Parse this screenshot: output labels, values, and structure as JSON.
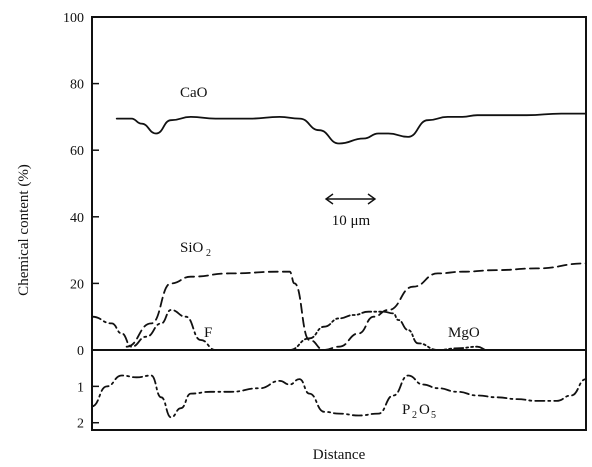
{
  "chart_data": {
    "type": "line",
    "title": "",
    "xlabel": "Distance",
    "ylabel": "Chemical content (%)",
    "grid": false,
    "legend": "none",
    "scale_bar_label": "10 μm",
    "x_range": [
      0,
      100
    ],
    "panels": [
      {
        "name": "upper",
        "ylim": [
          0,
          100
        ],
        "yticks": [
          "0",
          "20",
          "40",
          "60",
          "80",
          "100"
        ],
        "series": [
          {
            "name": "CaO",
            "style": "solid",
            "x": [
              5,
              8,
              10,
              13,
              16,
              20,
              25,
              32,
              38,
              42,
              46,
              50,
              55,
              58,
              60,
              64,
              68,
              72,
              75,
              78,
              82,
              88,
              95,
              100
            ],
            "y": [
              69.5,
              69.5,
              68,
              65,
              69,
              70,
              69.5,
              69.5,
              70,
              69.5,
              66,
              62,
              63.5,
              65,
              65,
              64,
              69,
              70,
              70,
              70.5,
              70.5,
              70.5,
              71,
              71
            ]
          },
          {
            "name": "SiO2",
            "style": "dashed",
            "x": [
              7,
              12,
              16,
              20,
              28,
              38,
              40,
              41,
              44,
              47,
              50,
              54,
              57,
              60,
              65,
              70,
              75,
              82,
              90,
              100
            ],
            "y": [
              1,
              8,
              20,
              22,
              23,
              23.5,
              23.5,
              20,
              3,
              0,
              1,
              5,
              10,
              12,
              19,
              23,
              23.5,
              24,
              24.5,
              26
            ]
          },
          {
            "name": "F",
            "style": "dash-dot",
            "x": [
              0,
              4,
              6,
              8,
              11,
              14,
              16,
              19,
              22,
              25
            ],
            "y": [
              10,
              8,
              5,
              1,
              4,
              8,
              12,
              10,
              3,
              0
            ]
          },
          {
            "name": "MgO",
            "style": "dash-dot-dot",
            "x": [
              35,
              40,
              44,
              47,
              50,
              53,
              56,
              59,
              61,
              62,
              64,
              66,
              70,
              74,
              78,
              80
            ],
            "y": [
              0,
              0,
              3.5,
              7,
              9.5,
              10.5,
              11.5,
              11.5,
              11,
              9,
              6,
              2,
              0,
              0.5,
              1,
              0
            ]
          }
        ]
      },
      {
        "name": "lower",
        "ylim": [
          0,
          2.2
        ],
        "inverted": true,
        "yticks": [
          "1",
          "2"
        ],
        "series": [
          {
            "name": "P2O5",
            "style": "dash-dot",
            "x": [
              0,
              3,
              6,
              9,
              12,
              14,
              16,
              18,
              20,
              24,
              28,
              34,
              38,
              40,
              42,
              44,
              47,
              50,
              54,
              58,
              61,
              64,
              67,
              70,
              74,
              78,
              82,
              86,
              90,
              94,
              97,
              100
            ],
            "y": [
              1.55,
              1.0,
              0.7,
              0.75,
              0.7,
              1.3,
              1.85,
              1.6,
              1.2,
              1.15,
              1.15,
              1.05,
              0.85,
              0.95,
              0.8,
              1.2,
              1.7,
              1.75,
              1.8,
              1.75,
              1.25,
              0.7,
              0.95,
              1.05,
              1.15,
              1.25,
              1.3,
              1.35,
              1.4,
              1.4,
              1.25,
              0.8
            ]
          }
        ]
      }
    ],
    "series_labels": {
      "CaO": "CaO",
      "SiO2": "SiO",
      "SiO2_sub": "2",
      "F": "F",
      "MgO": "MgO",
      "P2O5_a": "P",
      "P2O5_a_sub": "2",
      "P2O5_b": "O",
      "P2O5_b_sub": "5"
    }
  }
}
